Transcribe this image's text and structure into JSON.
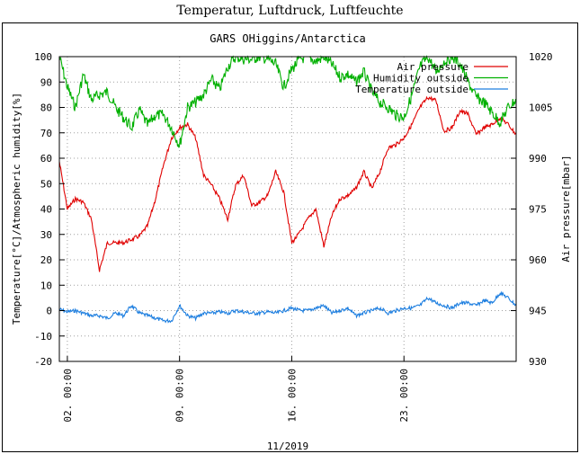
{
  "page_title": "Temperatur, Luftdruck, Luftfeuchte",
  "chart_data": {
    "type": "line",
    "title": "GARS OHiggins/Antarctica",
    "xlabel": "11/2019",
    "ylabel_left": "Temperature[°C]/Atmospheric humidity[%]",
    "ylabel_right": "Air pressure[mbar]",
    "xlim": [
      "2019-11-01 12:00",
      "2019-11-30 00:00"
    ],
    "ylim_left": [
      -20,
      100
    ],
    "ylim_right": [
      930,
      1020
    ],
    "x_ticks": [
      "02. 00:00",
      "09. 00:00",
      "16. 00:00",
      "23. 00:00"
    ],
    "y_ticks_left": [
      -20,
      -10,
      0,
      10,
      20,
      30,
      40,
      50,
      60,
      70,
      80,
      90,
      100
    ],
    "y_ticks_right": [
      930,
      945,
      960,
      975,
      990,
      1005,
      1020
    ],
    "grid": true,
    "legend_position": "top-right",
    "series": [
      {
        "name": "Air pressure",
        "color": "#e00000",
        "axis": "right",
        "points": [
          [
            "2019-11-01 12:00",
            989
          ],
          [
            "2019-11-02 00:00",
            975
          ],
          [
            "2019-11-02 12:00",
            978
          ],
          [
            "2019-11-03 00:00",
            977
          ],
          [
            "2019-11-03 12:00",
            972
          ],
          [
            "2019-11-04 00:00",
            957
          ],
          [
            "2019-11-04 12:00",
            965
          ],
          [
            "2019-11-05 00:00",
            965
          ],
          [
            "2019-11-05 12:00",
            965
          ],
          [
            "2019-11-06 00:00",
            966
          ],
          [
            "2019-11-06 12:00",
            967
          ],
          [
            "2019-11-07 00:00",
            970
          ],
          [
            "2019-11-07 12:00",
            978
          ],
          [
            "2019-11-08 00:00",
            988
          ],
          [
            "2019-11-08 12:00",
            996
          ],
          [
            "2019-11-09 00:00",
            999
          ],
          [
            "2019-11-09 12:00",
            1000
          ],
          [
            "2019-11-10 00:00",
            996
          ],
          [
            "2019-11-10 12:00",
            985
          ],
          [
            "2019-11-11 00:00",
            982
          ],
          [
            "2019-11-11 12:00",
            978
          ],
          [
            "2019-11-12 00:00",
            972
          ],
          [
            "2019-11-12 12:00",
            982
          ],
          [
            "2019-11-13 00:00",
            985
          ],
          [
            "2019-11-13 12:00",
            976
          ],
          [
            "2019-11-14 00:00",
            977
          ],
          [
            "2019-11-14 12:00",
            979
          ],
          [
            "2019-11-15 00:00",
            986
          ],
          [
            "2019-11-15 12:00",
            980
          ],
          [
            "2019-11-16 00:00",
            965
          ],
          [
            "2019-11-16 12:00",
            968
          ],
          [
            "2019-11-17 00:00",
            972
          ],
          [
            "2019-11-17 12:00",
            975
          ],
          [
            "2019-11-18 00:00",
            964
          ],
          [
            "2019-11-18 12:00",
            973
          ],
          [
            "2019-11-19 00:00",
            978
          ],
          [
            "2019-11-19 12:00",
            979
          ],
          [
            "2019-11-20 00:00",
            981
          ],
          [
            "2019-11-20 12:00",
            986
          ],
          [
            "2019-11-21 00:00",
            981
          ],
          [
            "2019-11-21 12:00",
            986
          ],
          [
            "2019-11-22 00:00",
            993
          ],
          [
            "2019-11-22 12:00",
            994
          ],
          [
            "2019-11-23 00:00",
            996
          ],
          [
            "2019-11-23 12:00",
            1000
          ],
          [
            "2019-11-24 00:00",
            1005
          ],
          [
            "2019-11-24 12:00",
            1008
          ],
          [
            "2019-11-25 00:00",
            1007
          ],
          [
            "2019-11-25 12:00",
            998
          ],
          [
            "2019-11-26 00:00",
            999
          ],
          [
            "2019-11-26 12:00",
            1004
          ],
          [
            "2019-11-27 00:00",
            1003
          ],
          [
            "2019-11-27 12:00",
            997
          ],
          [
            "2019-11-28 00:00",
            999
          ],
          [
            "2019-11-28 12:00",
            1000
          ],
          [
            "2019-11-29 00:00",
            1002
          ],
          [
            "2019-11-29 12:00",
            1000
          ],
          [
            "2019-11-30 00:00",
            997
          ]
        ]
      },
      {
        "name": "Humidity outside",
        "color": "#00b000",
        "axis": "left",
        "points": [
          [
            "2019-11-01 12:00",
            100
          ],
          [
            "2019-11-02 00:00",
            88
          ],
          [
            "2019-11-02 12:00",
            80
          ],
          [
            "2019-11-03 00:00",
            93
          ],
          [
            "2019-11-03 12:00",
            83
          ],
          [
            "2019-11-04 00:00",
            85
          ],
          [
            "2019-11-04 12:00",
            86
          ],
          [
            "2019-11-05 00:00",
            80
          ],
          [
            "2019-11-05 12:00",
            76
          ],
          [
            "2019-11-06 00:00",
            72
          ],
          [
            "2019-11-06 12:00",
            79
          ],
          [
            "2019-11-07 00:00",
            73
          ],
          [
            "2019-11-07 12:00",
            77
          ],
          [
            "2019-11-08 00:00",
            77
          ],
          [
            "2019-11-08 12:00",
            72
          ],
          [
            "2019-11-09 00:00",
            65
          ],
          [
            "2019-11-09 12:00",
            80
          ],
          [
            "2019-11-10 00:00",
            82
          ],
          [
            "2019-11-10 12:00",
            85
          ],
          [
            "2019-11-11 00:00",
            91
          ],
          [
            "2019-11-11 12:00",
            87
          ],
          [
            "2019-11-12 00:00",
            96
          ],
          [
            "2019-11-12 12:00",
            100
          ],
          [
            "2019-11-13 00:00",
            99
          ],
          [
            "2019-11-13 12:00",
            99
          ],
          [
            "2019-11-14 00:00",
            100
          ],
          [
            "2019-11-14 12:00",
            99
          ],
          [
            "2019-11-15 00:00",
            97
          ],
          [
            "2019-11-15 12:00",
            88
          ],
          [
            "2019-11-16 00:00",
            95
          ],
          [
            "2019-11-16 12:00",
            99
          ],
          [
            "2019-11-17 00:00",
            100
          ],
          [
            "2019-11-17 12:00",
            98
          ],
          [
            "2019-11-18 00:00",
            100
          ],
          [
            "2019-11-18 12:00",
            97
          ],
          [
            "2019-11-19 00:00",
            92
          ],
          [
            "2019-11-19 12:00",
            93
          ],
          [
            "2019-11-20 00:00",
            90
          ],
          [
            "2019-11-20 12:00",
            94
          ],
          [
            "2019-11-21 00:00",
            86
          ],
          [
            "2019-11-21 12:00",
            82
          ],
          [
            "2019-11-22 00:00",
            80
          ],
          [
            "2019-11-22 12:00",
            77
          ],
          [
            "2019-11-23 00:00",
            76
          ],
          [
            "2019-11-23 12:00",
            85
          ],
          [
            "2019-11-24 00:00",
            96
          ],
          [
            "2019-11-24 12:00",
            100
          ],
          [
            "2019-11-25 00:00",
            94
          ],
          [
            "2019-11-25 12:00",
            98
          ],
          [
            "2019-11-26 00:00",
            100
          ],
          [
            "2019-11-26 12:00",
            97
          ],
          [
            "2019-11-27 00:00",
            90
          ],
          [
            "2019-11-27 12:00",
            84
          ],
          [
            "2019-11-28 00:00",
            82
          ],
          [
            "2019-11-28 12:00",
            78
          ],
          [
            "2019-11-29 00:00",
            74
          ],
          [
            "2019-11-29 12:00",
            80
          ],
          [
            "2019-11-30 00:00",
            83
          ]
        ]
      },
      {
        "name": "Temperature outside",
        "color": "#1e7fe0",
        "axis": "left",
        "points": [
          [
            "2019-11-01 12:00",
            0.5
          ],
          [
            "2019-11-02 00:00",
            -0.5
          ],
          [
            "2019-11-02 12:00",
            0
          ],
          [
            "2019-11-03 00:00",
            -1
          ],
          [
            "2019-11-03 12:00",
            -2
          ],
          [
            "2019-11-04 00:00",
            -2
          ],
          [
            "2019-11-04 12:00",
            -3
          ],
          [
            "2019-11-05 00:00",
            -1
          ],
          [
            "2019-11-05 12:00",
            -2
          ],
          [
            "2019-11-06 00:00",
            2
          ],
          [
            "2019-11-06 12:00",
            -1
          ],
          [
            "2019-11-07 00:00",
            -2
          ],
          [
            "2019-11-07 12:00",
            -3
          ],
          [
            "2019-11-08 00:00",
            -4
          ],
          [
            "2019-11-08 12:00",
            -4
          ],
          [
            "2019-11-09 00:00",
            2
          ],
          [
            "2019-11-09 12:00",
            -2
          ],
          [
            "2019-11-10 00:00",
            -3
          ],
          [
            "2019-11-10 12:00",
            -1
          ],
          [
            "2019-11-11 00:00",
            -1
          ],
          [
            "2019-11-11 12:00",
            -0.5
          ],
          [
            "2019-11-12 00:00",
            -1
          ],
          [
            "2019-11-12 12:00",
            0
          ],
          [
            "2019-11-13 00:00",
            -0.5
          ],
          [
            "2019-11-13 12:00",
            -1
          ],
          [
            "2019-11-14 00:00",
            -1
          ],
          [
            "2019-11-14 12:00",
            -0.5
          ],
          [
            "2019-11-15 00:00",
            -1
          ],
          [
            "2019-11-15 12:00",
            0
          ],
          [
            "2019-11-16 00:00",
            1
          ],
          [
            "2019-11-16 12:00",
            0
          ],
          [
            "2019-11-17 00:00",
            0
          ],
          [
            "2019-11-17 12:00",
            1
          ],
          [
            "2019-11-18 00:00",
            2
          ],
          [
            "2019-11-18 12:00",
            -1
          ],
          [
            "2019-11-19 00:00",
            0
          ],
          [
            "2019-11-19 12:00",
            1
          ],
          [
            "2019-11-20 00:00",
            -2
          ],
          [
            "2019-11-20 12:00",
            -1
          ],
          [
            "2019-11-21 00:00",
            0
          ],
          [
            "2019-11-21 12:00",
            1
          ],
          [
            "2019-11-22 00:00",
            -1
          ],
          [
            "2019-11-22 12:00",
            0
          ],
          [
            "2019-11-23 00:00",
            1
          ],
          [
            "2019-11-23 12:00",
            1
          ],
          [
            "2019-11-24 00:00",
            2
          ],
          [
            "2019-11-24 12:00",
            5
          ],
          [
            "2019-11-25 00:00",
            3
          ],
          [
            "2019-11-25 12:00",
            2
          ],
          [
            "2019-11-26 00:00",
            1
          ],
          [
            "2019-11-26 12:00",
            3
          ],
          [
            "2019-11-27 00:00",
            3
          ],
          [
            "2019-11-27 12:00",
            2
          ],
          [
            "2019-11-28 00:00",
            4
          ],
          [
            "2019-11-28 12:00",
            3
          ],
          [
            "2019-11-29 00:00",
            7
          ],
          [
            "2019-11-29 12:00",
            5
          ],
          [
            "2019-11-30 00:00",
            2
          ]
        ]
      }
    ]
  }
}
